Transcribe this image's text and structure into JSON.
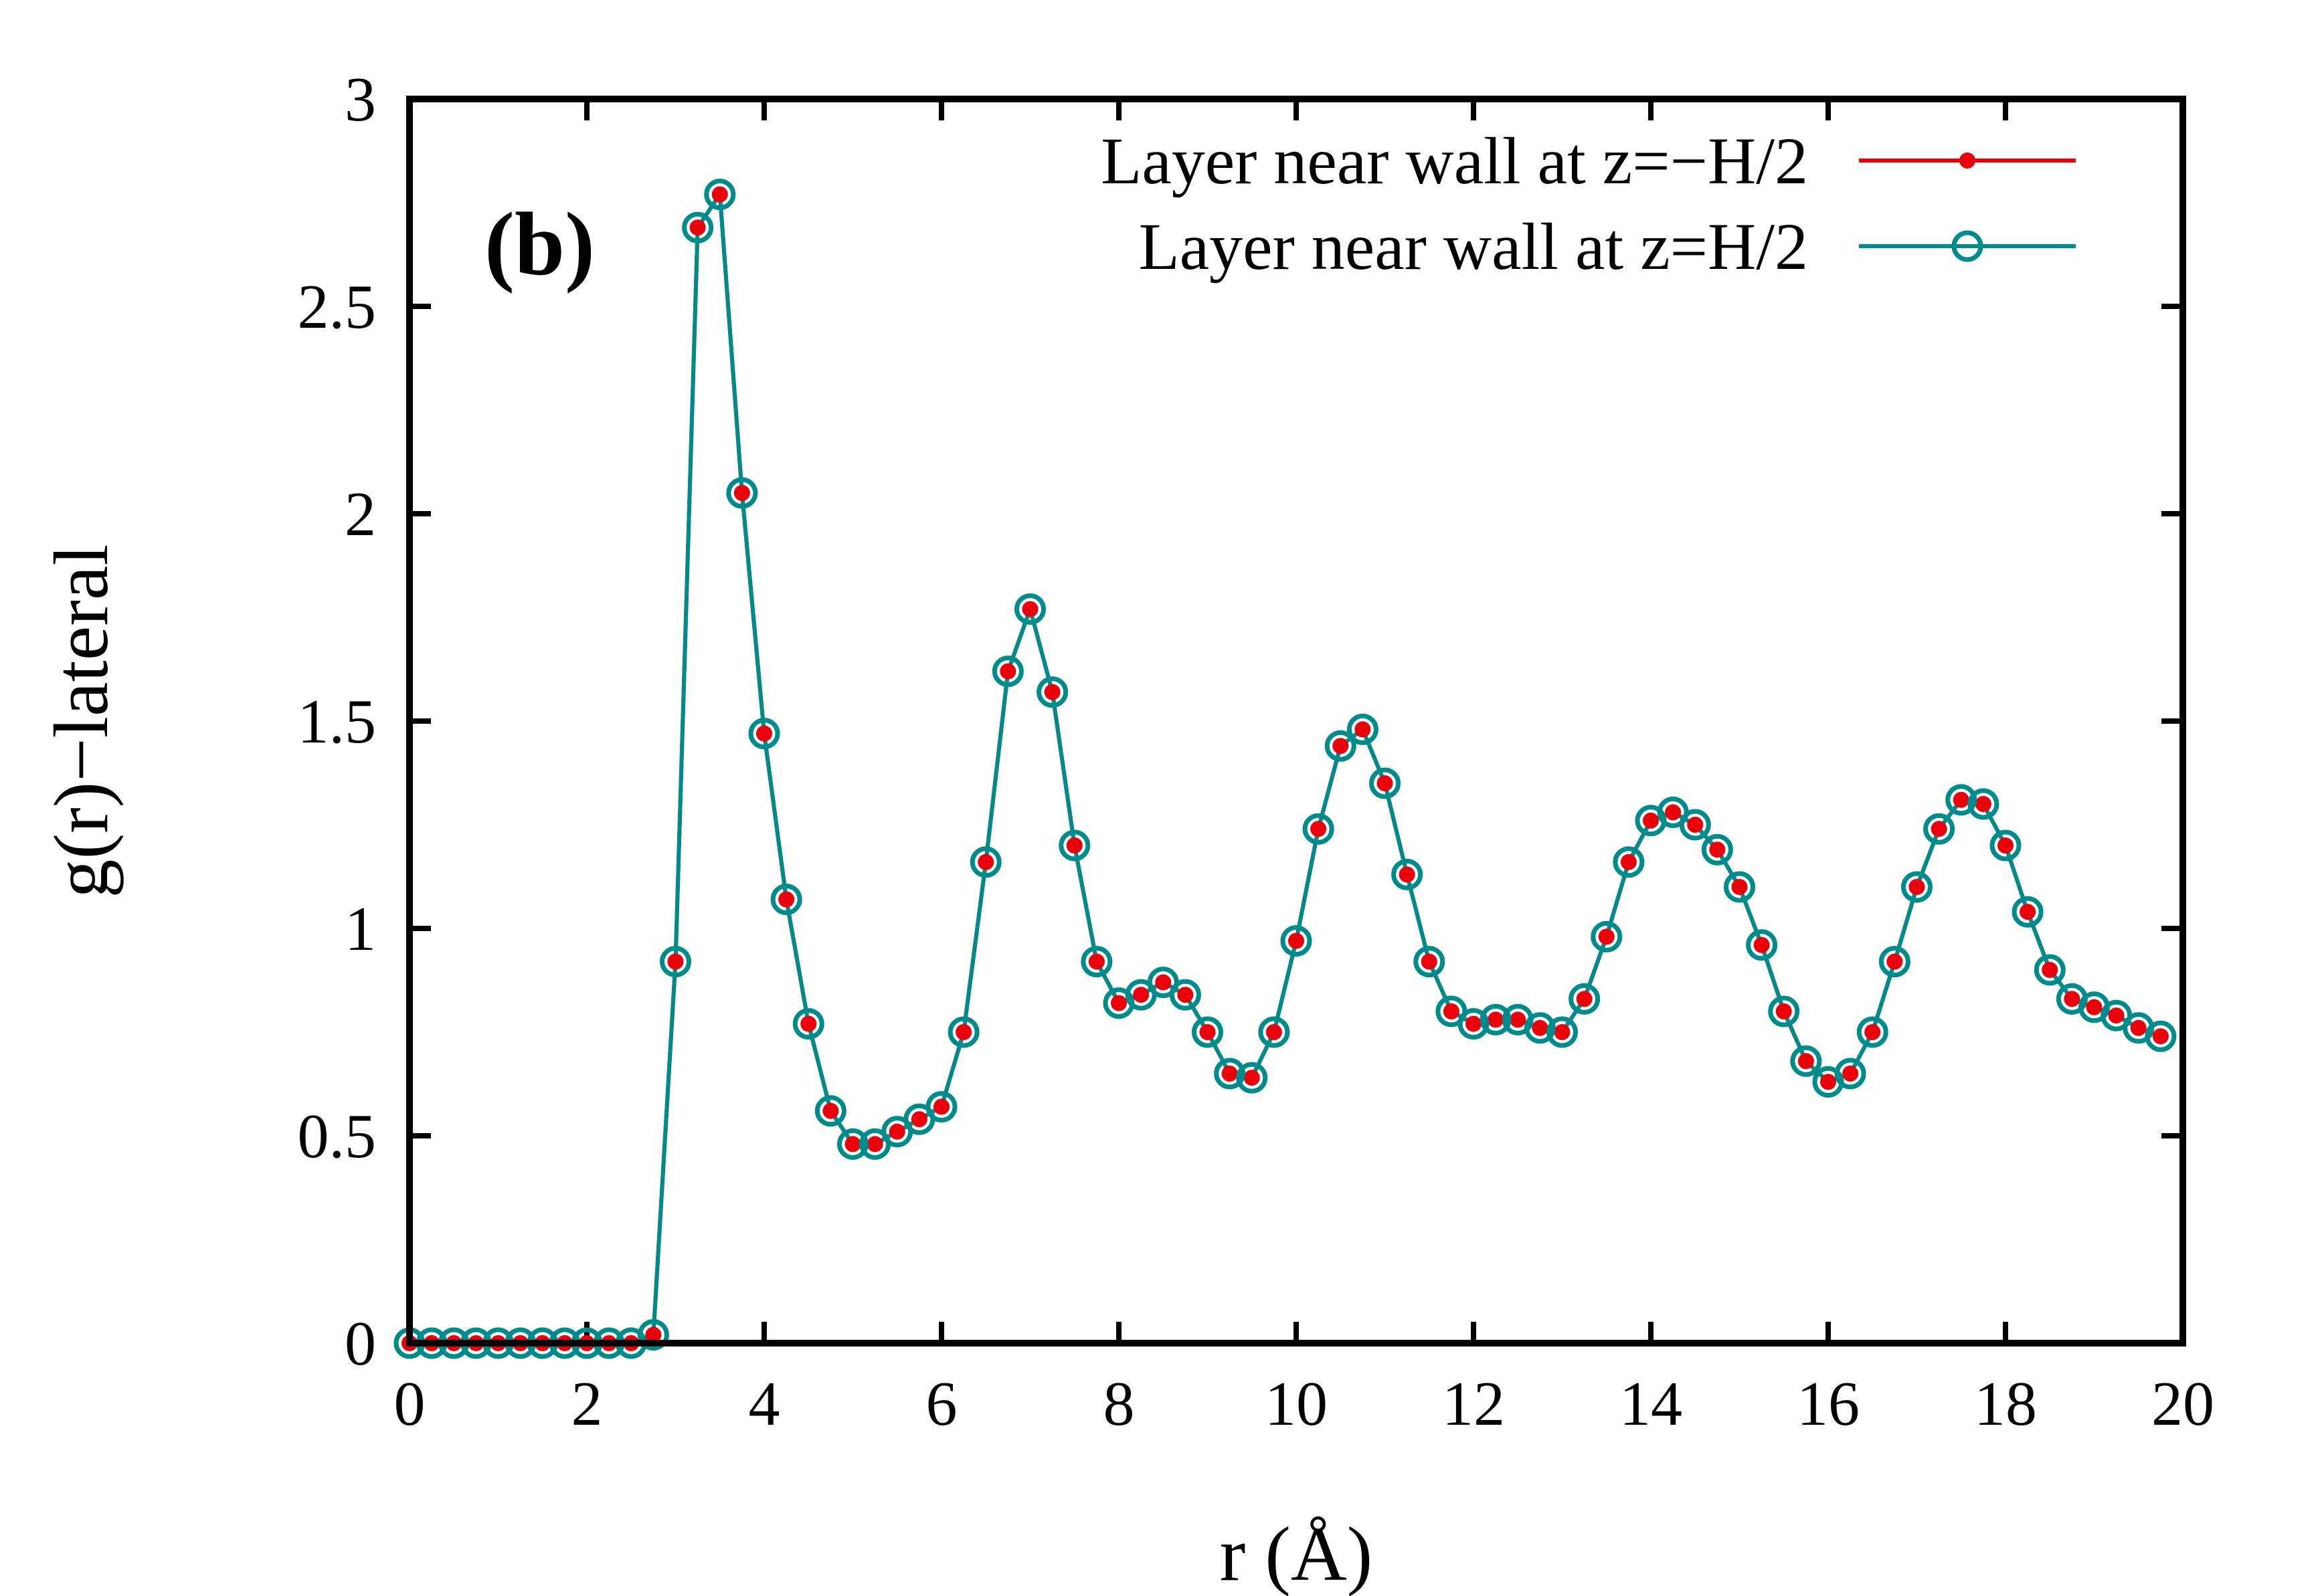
{
  "chart_data": {
    "type": "line",
    "panel_label": "(b)",
    "xlabel": "r (Å)",
    "ylabel": "g(r)−lateral",
    "xlim": [
      0,
      20
    ],
    "ylim": [
      0,
      3
    ],
    "x_ticks": [
      "0",
      "2",
      "4",
      "6",
      "8",
      "10",
      "12",
      "14",
      "16",
      "18",
      "20"
    ],
    "y_ticks": [
      "0",
      "0.5",
      "1",
      "1.5",
      "2",
      "2.5",
      "3"
    ],
    "legend_position": "top-right",
    "x": [
      0,
      0.25,
      0.5,
      0.75,
      1.0,
      1.25,
      1.5,
      1.75,
      2.0,
      2.25,
      2.5,
      2.75,
      3.0,
      3.25,
      3.5,
      3.75,
      4.0,
      4.25,
      4.5,
      4.75,
      5.0,
      5.25,
      5.5,
      5.75,
      6.0,
      6.25,
      6.5,
      6.75,
      7.0,
      7.25,
      7.5,
      7.75,
      8.0,
      8.25,
      8.5,
      8.75,
      9.0,
      9.25,
      9.5,
      9.75,
      10.0,
      10.25,
      10.5,
      10.75,
      11.0,
      11.25,
      11.5,
      11.75,
      12.0,
      12.25,
      12.5,
      12.75,
      13.0,
      13.25,
      13.5,
      13.75,
      14.0,
      14.25,
      14.5,
      14.75,
      15.0,
      15.25,
      15.5,
      15.75,
      16.0,
      16.25,
      16.5,
      16.75,
      17.0,
      17.25,
      17.5,
      17.75,
      18.0,
      18.25,
      18.5,
      18.75,
      19.0,
      19.25,
      19.5,
      19.75
    ],
    "series": [
      {
        "name": "Layer near wall at z=−H/2",
        "color": "#e8000b",
        "marker": "filled-circle",
        "values": [
          0,
          0,
          0,
          0,
          0,
          0,
          0,
          0,
          0,
          0,
          0,
          0.02,
          0.92,
          2.69,
          2.77,
          2.05,
          1.47,
          1.07,
          0.77,
          0.56,
          0.48,
          0.48,
          0.51,
          0.54,
          0.57,
          0.75,
          1.16,
          1.62,
          1.77,
          1.57,
          1.2,
          0.92,
          0.82,
          0.84,
          0.87,
          0.84,
          0.75,
          0.65,
          0.64,
          0.75,
          0.97,
          1.24,
          1.44,
          1.48,
          1.35,
          1.13,
          0.92,
          0.8,
          0.77,
          0.78,
          0.78,
          0.76,
          0.75,
          0.83,
          0.98,
          1.16,
          1.26,
          1.28,
          1.25,
          1.19,
          1.1,
          0.96,
          0.8,
          0.68,
          0.63,
          0.65,
          0.75,
          0.92,
          1.1,
          1.24,
          1.31,
          1.3,
          1.2,
          1.04,
          0.9,
          0.83,
          0.81,
          0.79,
          0.76,
          0.74
        ]
      },
      {
        "name": "Layer near wall at z=H/2",
        "color": "#008b8b",
        "marker": "open-circle",
        "values": [
          0,
          0,
          0,
          0,
          0,
          0,
          0,
          0,
          0,
          0,
          0,
          0.02,
          0.92,
          2.69,
          2.77,
          2.05,
          1.47,
          1.07,
          0.77,
          0.56,
          0.48,
          0.48,
          0.51,
          0.54,
          0.57,
          0.75,
          1.16,
          1.62,
          1.77,
          1.57,
          1.2,
          0.92,
          0.82,
          0.84,
          0.87,
          0.84,
          0.75,
          0.65,
          0.64,
          0.75,
          0.97,
          1.24,
          1.44,
          1.48,
          1.35,
          1.13,
          0.92,
          0.8,
          0.77,
          0.78,
          0.78,
          0.76,
          0.75,
          0.83,
          0.98,
          1.16,
          1.26,
          1.28,
          1.25,
          1.19,
          1.1,
          0.96,
          0.8,
          0.68,
          0.63,
          0.65,
          0.75,
          0.92,
          1.1,
          1.24,
          1.31,
          1.3,
          1.2,
          1.04,
          0.9,
          0.83,
          0.81,
          0.79,
          0.76,
          0.74
        ]
      }
    ]
  }
}
